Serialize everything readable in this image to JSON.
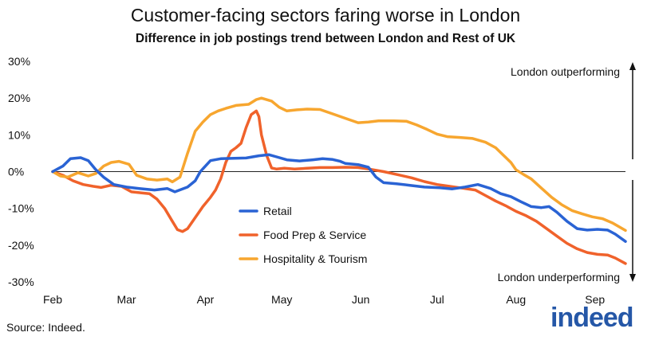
{
  "chart_data": {
    "type": "line",
    "title": "Customer-facing sectors faring worse in London",
    "subtitle": "Difference in job postings trend between London and Rest of UK",
    "xlabel": "",
    "ylabel": "",
    "ylim": [
      -30,
      30
    ],
    "y_ticks": [
      {
        "v": 30,
        "label": "30%"
      },
      {
        "v": 20,
        "label": "20%"
      },
      {
        "v": 10,
        "label": "10%"
      },
      {
        "v": 0,
        "label": "0%"
      },
      {
        "v": -10,
        "label": "-10%"
      },
      {
        "v": -20,
        "label": "-20%"
      },
      {
        "v": -30,
        "label": "-30%"
      }
    ],
    "x_ticks": [
      {
        "v": 0,
        "label": "Feb"
      },
      {
        "v": 29,
        "label": "Mar"
      },
      {
        "v": 60,
        "label": "Apr"
      },
      {
        "v": 90,
        "label": "May"
      },
      {
        "v": 121,
        "label": "Jun"
      },
      {
        "v": 151,
        "label": "Jul"
      },
      {
        "v": 182,
        "label": "Aug"
      },
      {
        "v": 213,
        "label": "Sep"
      }
    ],
    "xlim": [
      0,
      225
    ],
    "series": [
      {
        "name": "Retail",
        "color": "#2a63d4",
        "points": [
          [
            0,
            0
          ],
          [
            4,
            1.5
          ],
          [
            7,
            3.5
          ],
          [
            11,
            3.8
          ],
          [
            14,
            3
          ],
          [
            17,
            0.5
          ],
          [
            20,
            -1.5
          ],
          [
            24,
            -3.5
          ],
          [
            29,
            -4.2
          ],
          [
            34,
            -4.6
          ],
          [
            40,
            -5
          ],
          [
            45,
            -4.6
          ],
          [
            48,
            -5.5
          ],
          [
            53,
            -4.2
          ],
          [
            56,
            -2.5
          ],
          [
            58,
            0
          ],
          [
            62,
            3
          ],
          [
            66,
            3.5
          ],
          [
            70,
            3.6
          ],
          [
            76,
            3.7
          ],
          [
            81,
            4.3
          ],
          [
            85,
            4.6
          ],
          [
            88,
            4
          ],
          [
            92,
            3.2
          ],
          [
            97,
            2.9
          ],
          [
            102,
            3.2
          ],
          [
            106,
            3.5
          ],
          [
            110,
            3.3
          ],
          [
            113,
            2.8
          ],
          [
            115,
            2.2
          ],
          [
            120,
            1.9
          ],
          [
            124,
            1.2
          ],
          [
            127,
            -1.5
          ],
          [
            130,
            -3
          ],
          [
            135,
            -3.3
          ],
          [
            140,
            -3.7
          ],
          [
            146,
            -4.2
          ],
          [
            152,
            -4.4
          ],
          [
            157,
            -4.7
          ],
          [
            162,
            -4.2
          ],
          [
            167,
            -3.5
          ],
          [
            172,
            -4.6
          ],
          [
            176,
            -6
          ],
          [
            180,
            -6.8
          ],
          [
            184,
            -8.2
          ],
          [
            188,
            -9.5
          ],
          [
            192,
            -9.8
          ],
          [
            195,
            -9.5
          ],
          [
            198,
            -11
          ],
          [
            202,
            -13.5
          ],
          [
            206,
            -15.5
          ],
          [
            210,
            -15.9
          ],
          [
            214,
            -15.7
          ],
          [
            218,
            -15.9
          ],
          [
            221,
            -17
          ],
          [
            225,
            -19
          ]
        ]
      },
      {
        "name": "Food Prep & Service",
        "color": "#f0622b",
        "points": [
          [
            0,
            0
          ],
          [
            4,
            -1
          ],
          [
            8,
            -2.5
          ],
          [
            12,
            -3.5
          ],
          [
            16,
            -4
          ],
          [
            19,
            -4.3
          ],
          [
            23,
            -3.7
          ],
          [
            27,
            -4
          ],
          [
            31,
            -5.5
          ],
          [
            35,
            -5.8
          ],
          [
            38,
            -6
          ],
          [
            41,
            -7.5
          ],
          [
            44,
            -10
          ],
          [
            47,
            -13.5
          ],
          [
            49,
            -15.8
          ],
          [
            51,
            -16.3
          ],
          [
            53,
            -15.5
          ],
          [
            56,
            -12.5
          ],
          [
            59,
            -9.5
          ],
          [
            62,
            -7
          ],
          [
            64,
            -5
          ],
          [
            66,
            -2
          ],
          [
            68,
            2.5
          ],
          [
            70,
            5.5
          ],
          [
            72,
            6.5
          ],
          [
            74,
            7.7
          ],
          [
            76,
            12
          ],
          [
            78,
            15.5
          ],
          [
            80,
            16.5
          ],
          [
            81,
            15
          ],
          [
            82,
            10
          ],
          [
            84,
            4.5
          ],
          [
            86,
            1
          ],
          [
            88,
            0.7
          ],
          [
            91,
            0.9
          ],
          [
            95,
            0.7
          ],
          [
            100,
            0.9
          ],
          [
            105,
            1.1
          ],
          [
            110,
            1.1
          ],
          [
            115,
            1.2
          ],
          [
            120,
            1.1
          ],
          [
            125,
            0.6
          ],
          [
            130,
            0
          ],
          [
            136,
            -0.9
          ],
          [
            141,
            -1.7
          ],
          [
            146,
            -2.7
          ],
          [
            151,
            -3.5
          ],
          [
            156,
            -4
          ],
          [
            161,
            -4.5
          ],
          [
            166,
            -5
          ],
          [
            170,
            -6.5
          ],
          [
            174,
            -8
          ],
          [
            178,
            -9.3
          ],
          [
            182,
            -10.8
          ],
          [
            186,
            -12
          ],
          [
            190,
            -13.5
          ],
          [
            194,
            -15.5
          ],
          [
            198,
            -17.5
          ],
          [
            202,
            -19.5
          ],
          [
            206,
            -21
          ],
          [
            210,
            -22
          ],
          [
            214,
            -22.5
          ],
          [
            218,
            -22.7
          ],
          [
            221,
            -23.5
          ],
          [
            225,
            -25
          ]
        ]
      },
      {
        "name": "Hospitality & Tourism",
        "color": "#f7a62f",
        "points": [
          [
            0,
            0
          ],
          [
            3,
            -1.2
          ],
          [
            6,
            -1.5
          ],
          [
            10,
            -0.3
          ],
          [
            14,
            -1.2
          ],
          [
            17,
            -0.5
          ],
          [
            20,
            1.5
          ],
          [
            23,
            2.5
          ],
          [
            26,
            2.8
          ],
          [
            30,
            2
          ],
          [
            33,
            -1
          ],
          [
            37,
            -2
          ],
          [
            41,
            -2.3
          ],
          [
            45,
            -2
          ],
          [
            47,
            -2.8
          ],
          [
            50,
            -1.5
          ],
          [
            53,
            5
          ],
          [
            56,
            11
          ],
          [
            59,
            13.5
          ],
          [
            62,
            15.5
          ],
          [
            65,
            16.5
          ],
          [
            68,
            17.2
          ],
          [
            72,
            18
          ],
          [
            77,
            18.3
          ],
          [
            80,
            19.6
          ],
          [
            82,
            20
          ],
          [
            86,
            19.2
          ],
          [
            89,
            17.5
          ],
          [
            92,
            16.5
          ],
          [
            96,
            16.8
          ],
          [
            100,
            17
          ],
          [
            105,
            16.9
          ],
          [
            110,
            15.7
          ],
          [
            115,
            14.5
          ],
          [
            120,
            13.3
          ],
          [
            124,
            13.5
          ],
          [
            128,
            13.8
          ],
          [
            134,
            13.8
          ],
          [
            139,
            13.7
          ],
          [
            143,
            12.7
          ],
          [
            147,
            11.5
          ],
          [
            151,
            10.2
          ],
          [
            155,
            9.5
          ],
          [
            160,
            9.3
          ],
          [
            165,
            9
          ],
          [
            170,
            8
          ],
          [
            174,
            6.5
          ],
          [
            177,
            4.5
          ],
          [
            180,
            2.5
          ],
          [
            182,
            0.5
          ],
          [
            185,
            -0.8
          ],
          [
            188,
            -2
          ],
          [
            192,
            -4.5
          ],
          [
            196,
            -7
          ],
          [
            200,
            -9
          ],
          [
            204,
            -10.6
          ],
          [
            208,
            -11.5
          ],
          [
            212,
            -12.3
          ],
          [
            216,
            -12.8
          ],
          [
            220,
            -14
          ],
          [
            225,
            -16
          ]
        ]
      }
    ],
    "legend": [
      {
        "label": "Retail",
        "color": "#2a63d4"
      },
      {
        "label": "Food Prep & Service",
        "color": "#f0622b"
      },
      {
        "label": "Hospitality & Tourism",
        "color": "#f7a62f"
      }
    ],
    "legend_position": "center",
    "annotations": {
      "top": "London outperforming",
      "bottom": "London underperforming"
    }
  },
  "source": "Source: Indeed.",
  "logo_text": "indeed"
}
